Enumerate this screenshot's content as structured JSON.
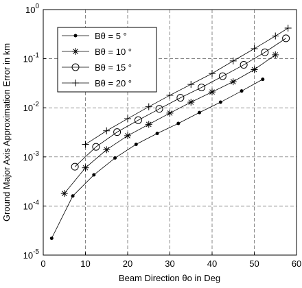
{
  "chart_data": {
    "type": "line",
    "x_label": "Beam Direction θo in Deg",
    "y_label": "Ground Major Axis Approximation Error in km",
    "xlim": [
      0,
      60
    ],
    "xticks": [
      0,
      10,
      20,
      30,
      40,
      50,
      60
    ],
    "ylim": [
      1e-05,
      1
    ],
    "log_y": true,
    "grid": true,
    "legend": "upper left",
    "yticks": [
      {
        "value": 1e-05,
        "label": "10",
        "exponent": "-5"
      },
      {
        "value": 0.0001,
        "label": "10",
        "exponent": "-4"
      },
      {
        "value": 0.001,
        "label": "10",
        "exponent": "-3"
      },
      {
        "value": 0.01,
        "label": "10",
        "exponent": "-2"
      },
      {
        "value": 0.1,
        "label": "10",
        "exponent": "-1"
      },
      {
        "value": 1,
        "label": "10",
        "exponent": "0"
      }
    ],
    "series": [
      {
        "name": "Bθ = 5 °",
        "color": "#000000",
        "marker": "dot",
        "x": [
          2,
          7,
          12,
          17,
          22,
          27,
          32,
          37,
          42,
          47,
          52
        ],
        "values": [
          2.2e-05,
          0.00016,
          0.00043,
          0.00095,
          0.0018,
          0.003,
          0.0048,
          0.008,
          0.013,
          0.022,
          0.038
        ]
      },
      {
        "name": "Bθ = 10 °",
        "color": "#000000",
        "marker": "star",
        "x": [
          5,
          10,
          15,
          20,
          25,
          30,
          35,
          40,
          45,
          50,
          55
        ],
        "values": [
          0.00018,
          0.0006,
          0.0014,
          0.0027,
          0.0046,
          0.0078,
          0.013,
          0.021,
          0.034,
          0.06,
          0.12
        ]
      },
      {
        "name": "Bθ = 15 °",
        "color": "#000000",
        "marker": "circle",
        "x": [
          7.5,
          12.5,
          17.5,
          22.5,
          27.5,
          32.5,
          37.5,
          42.5,
          47.5,
          52.5,
          57.5
        ],
        "values": [
          0.00063,
          0.0016,
          0.0032,
          0.0056,
          0.0095,
          0.016,
          0.026,
          0.044,
          0.075,
          0.135,
          0.26
        ]
      },
      {
        "name": "Bθ = 20 °",
        "color": "#000000",
        "marker": "plus",
        "x": [
          10,
          15,
          20,
          25,
          30,
          35,
          40,
          45,
          50,
          55,
          58
        ],
        "values": [
          0.0018,
          0.0034,
          0.006,
          0.0105,
          0.018,
          0.03,
          0.05,
          0.09,
          0.16,
          0.29,
          0.42
        ]
      }
    ]
  }
}
